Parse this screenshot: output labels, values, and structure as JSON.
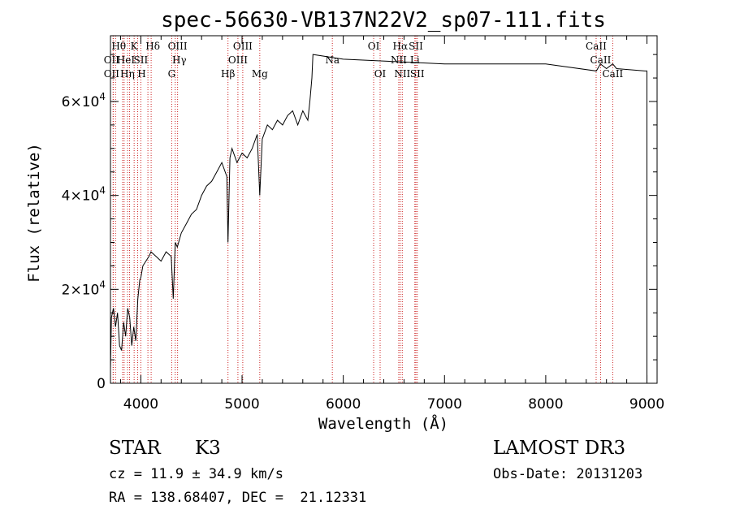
{
  "chart_data": {
    "type": "line",
    "title": "spec-56630-VB137N22V2_sp07-111.fits",
    "xlabel": "Wavelength (Å)",
    "ylabel": "Flux (relative)",
    "xlim": [
      3700,
      9100
    ],
    "ylim": [
      0,
      74000
    ],
    "xticks": [
      4000,
      5000,
      6000,
      7000,
      8000,
      9000
    ],
    "yticks": [
      {
        "value": 0,
        "mantissa": "0",
        "exp": ""
      },
      {
        "value": 20000,
        "mantissa": "2×10",
        "exp": "4"
      },
      {
        "value": 40000,
        "mantissa": "4×10",
        "exp": "4"
      },
      {
        "value": 60000,
        "mantissa": "6×10",
        "exp": "4"
      }
    ],
    "grid": false,
    "series": [
      {
        "x": [
          3700,
          3710,
          3730,
          3750,
          3770,
          3790,
          3810,
          3830,
          3850,
          3870,
          3890,
          3910,
          3930,
          3950,
          3970,
          3990,
          4000,
          4020,
          4050,
          4080,
          4100,
          4150,
          4200,
          4250,
          4300,
          4320,
          4340,
          4360,
          4400,
          4450,
          4500,
          4550,
          4600,
          4650,
          4700,
          4750,
          4800,
          4850,
          4861,
          4880,
          4900,
          4950,
          5000,
          5050,
          5100,
          5150,
          5175,
          5200,
          5250,
          5300,
          5350,
          5400,
          5450,
          5500,
          5550,
          5600,
          5650,
          5670,
          5690,
          5700,
          6000,
          7000,
          8000,
          8500,
          8540,
          8600,
          8662,
          8700,
          8980,
          9000,
          9000,
          9010,
          9015,
          9020
        ],
        "y": [
          3000,
          14000,
          16000,
          12000,
          15000,
          8000,
          7000,
          13000,
          10000,
          16000,
          14000,
          8000,
          12000,
          9000,
          18000,
          22000,
          22500,
          25000,
          26000,
          27000,
          28000,
          27000,
          26000,
          28000,
          27000,
          18000,
          30000,
          29000,
          32000,
          34000,
          36000,
          37000,
          40000,
          42000,
          43000,
          45000,
          47000,
          44000,
          30000,
          48000,
          50000,
          47000,
          49000,
          48000,
          50000,
          53000,
          40000,
          52000,
          55000,
          54000,
          56000,
          55000,
          57000,
          58000,
          55000,
          58000,
          56000,
          60000,
          65000,
          70000,
          69000,
          68000,
          68000,
          66500,
          68000,
          67000,
          68000,
          67000,
          66500,
          66500,
          0,
          0,
          0,
          0
        ]
      }
    ],
    "lines": [
      {
        "wl": 3727,
        "label": "OII",
        "row": 1,
        "dx": -2
      },
      {
        "wl": 3727,
        "label": "OII",
        "row": 2,
        "dx": -2
      },
      {
        "wl": 3750,
        "label": "Hθ",
        "row": 0,
        "dx": 4
      },
      {
        "wl": 3820,
        "label": "HeI",
        "row": 1,
        "dx": 4
      },
      {
        "wl": 3835,
        "label": "Hη",
        "row": 2,
        "dx": 4
      },
      {
        "wl": 3869,
        "label": "",
        "row": 0,
        "dx": 0
      },
      {
        "wl": 3889,
        "label": "",
        "row": 0,
        "dx": 0
      },
      {
        "wl": 3934,
        "label": "K",
        "row": 0,
        "dx": 0
      },
      {
        "wl": 3969,
        "label": "H",
        "row": 2,
        "dx": 5
      },
      {
        "wl": 4000,
        "label": "SII",
        "row": 1,
        "dx": 0
      },
      {
        "wl": 4070,
        "label": "",
        "row": 0,
        "dx": 0
      },
      {
        "wl": 4102,
        "label": "Hδ",
        "row": 0,
        "dx": 2
      },
      {
        "wl": 4305,
        "label": "G",
        "row": 2,
        "dx": 0
      },
      {
        "wl": 4340,
        "label": "Hγ",
        "row": 1,
        "dx": 5
      },
      {
        "wl": 4363,
        "label": "OIII",
        "row": 0,
        "dx": 0
      },
      {
        "wl": 4861,
        "label": "Hβ",
        "row": 2,
        "dx": 0
      },
      {
        "wl": 4959,
        "label": "OIII",
        "row": 1,
        "dx": 0
      },
      {
        "wl": 5007,
        "label": "OIII",
        "row": 0,
        "dx": 0
      },
      {
        "wl": 5175,
        "label": "Mg",
        "row": 2,
        "dx": 0
      },
      {
        "wl": 5892,
        "label": "Na",
        "row": 1,
        "dx": 0
      },
      {
        "wl": 6300,
        "label": "OI",
        "row": 0,
        "dx": 0
      },
      {
        "wl": 6364,
        "label": "OI",
        "row": 2,
        "dx": 0
      },
      {
        "wl": 6548,
        "label": "NII",
        "row": 1,
        "dx": 0
      },
      {
        "wl": 6563,
        "label": "Hα",
        "row": 0,
        "dx": 0
      },
      {
        "wl": 6583,
        "label": "NII",
        "row": 2,
        "dx": 0
      },
      {
        "wl": 6707,
        "label": "Li",
        "row": 1,
        "dx": 0
      },
      {
        "wl": 6717,
        "label": "SII",
        "row": 0,
        "dx": 0
      },
      {
        "wl": 6731,
        "label": "SII",
        "row": 2,
        "dx": 0
      },
      {
        "wl": 8498,
        "label": "CaII",
        "row": 0,
        "dx": 0
      },
      {
        "wl": 8542,
        "label": "CaII",
        "row": 1,
        "dx": 0
      },
      {
        "wl": 8662,
        "label": "CaII",
        "row": 2,
        "dx": 0
      }
    ],
    "colors": {
      "line": "#000000",
      "marker": "#cc2222"
    }
  },
  "info": {
    "class_label": "STAR",
    "subclass": "K3",
    "cz": "cz = 11.9 ± 34.9 km/s",
    "coords": "RA = 138.68407, DEC =  21.12331",
    "survey": "LAMOST DR3",
    "obs_date": "Obs-Date: 20131203"
  }
}
